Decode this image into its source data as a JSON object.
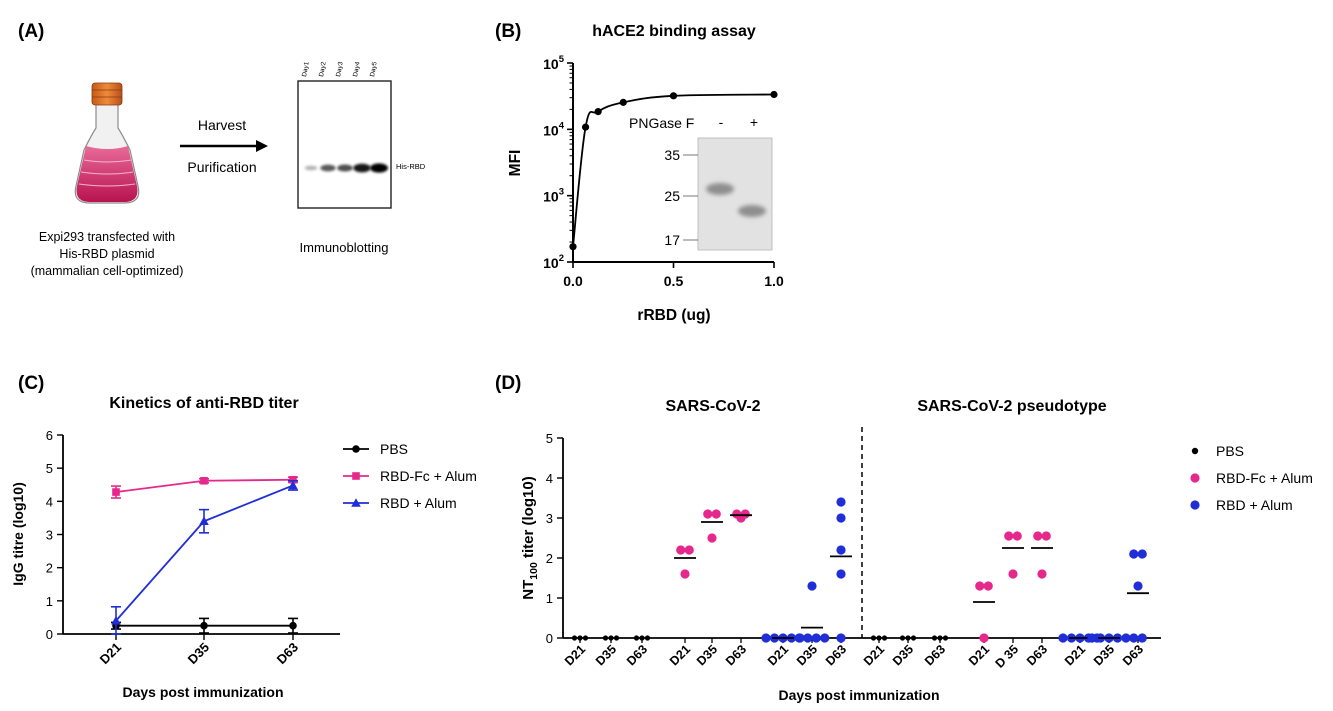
{
  "panels": {
    "a": {
      "label": "(A)",
      "flask_caption": [
        "Expi293 transfected with",
        "His-RBD plasmid",
        "(mammalian cell-optimized)"
      ],
      "arrow_labels": [
        "Harvest",
        "Purification"
      ],
      "lanes": [
        "Day1",
        "Day2",
        "Day3",
        "Day4",
        "Day5"
      ],
      "band_label": "His-RBD",
      "blot_caption": "Immunoblotting",
      "band_intensity": [
        0.1,
        0.55,
        0.6,
        0.9,
        1.0
      ]
    },
    "b": {
      "label": "(B)",
      "inset": {
        "title": "PNGase F",
        "minus": "-",
        "plus": "+",
        "markers": [
          "35",
          "25",
          "17"
        ]
      }
    },
    "c": {
      "label": "(C)"
    },
    "d": {
      "label": "(D)"
    }
  },
  "chart_data": [
    {
      "id": "B",
      "type": "line",
      "title": "hACE2 binding assay",
      "xlabel": "rRBD (ug)",
      "ylabel": "MFI",
      "yscale": "log",
      "xlim": [
        0,
        1.0
      ],
      "ylim": [
        100,
        100000
      ],
      "xticks": [
        "0.0",
        "0.5",
        "1.0"
      ],
      "yticks": [
        {
          "base": "10",
          "exp": "2"
        },
        {
          "base": "10",
          "exp": "3"
        },
        {
          "base": "10",
          "exp": "4"
        },
        {
          "base": "10",
          "exp": "5"
        }
      ],
      "x": [
        0,
        0.0625,
        0.125,
        0.25,
        0.5,
        1.0
      ],
      "y": [
        170,
        10800,
        18500,
        25500,
        32000,
        33500
      ]
    },
    {
      "id": "C",
      "type": "line",
      "title": "Kinetics of anti-RBD titer",
      "xlabel": "Days post immunization",
      "ylabel": "IgG titre (log10)",
      "categories": [
        "D21",
        "D35",
        "D63"
      ],
      "ylim": [
        0,
        6
      ],
      "yticks": [
        "0",
        "1",
        "2",
        "3",
        "4",
        "5",
        "6"
      ],
      "legend_position": "right",
      "series": [
        {
          "name": "PBS",
          "color": "#000000",
          "marker": "circle",
          "values": [
            0.25,
            0.25,
            0.25
          ],
          "err": [
            0.1,
            0.22,
            0.22
          ]
        },
        {
          "name": "RBD-Fc + Alum",
          "color": "#e6288c",
          "marker": "square",
          "values": [
            4.28,
            4.62,
            4.65
          ],
          "err": [
            0.18,
            0.06,
            0.08
          ]
        },
        {
          "name": "RBD + Alum",
          "color": "#1f2ed6",
          "marker": "triangle",
          "values": [
            0.4,
            3.4,
            4.48
          ],
          "err": [
            0.42,
            0.35,
            0.14
          ]
        }
      ]
    },
    {
      "id": "D",
      "type": "scatter",
      "ylabel_parts": {
        "pre": "NT",
        "sub": "100",
        "post": " titer (log10)"
      },
      "xlabel": "Days post immunization",
      "ylim": [
        0,
        5
      ],
      "yticks": [
        "0",
        "1",
        "2",
        "3",
        "4",
        "5"
      ],
      "legend_position": "right",
      "legend": [
        {
          "name": "PBS",
          "color": "#000000"
        },
        {
          "name": "RBD-Fc + Alum",
          "color": "#e6288c"
        },
        {
          "name": "RBD + Alum",
          "color": "#1f2ed6"
        }
      ],
      "panels": [
        {
          "title": "SARS-CoV-2",
          "groups": [
            {
              "label": "D21",
              "series": "PBS",
              "points": [
                0,
                0,
                0
              ],
              "mean": 0
            },
            {
              "label": "D35",
              "series": "PBS",
              "points": [
                0,
                0,
                0
              ],
              "mean": 0
            },
            {
              "label": "D63",
              "series": "PBS",
              "points": [
                0,
                0,
                0
              ],
              "mean": 0
            },
            {
              "label": "D21",
              "series": "RBD-Fc + Alum",
              "points": [
                2.2,
                2.2,
                1.6
              ],
              "mean": 2.0
            },
            {
              "label": "D35",
              "series": "RBD-Fc + Alum",
              "points": [
                3.1,
                3.1,
                2.5
              ],
              "mean": 2.9
            },
            {
              "label": "D63",
              "series": "RBD-Fc + Alum",
              "points": [
                3.0,
                3.1,
                3.1
              ],
              "mean": 3.07
            },
            {
              "label": "D21",
              "series": "RBD + Alum",
              "points": [
                0,
                0,
                0,
                0,
                0
              ],
              "mean": 0
            },
            {
              "label": "D35",
              "series": "RBD + Alum",
              "points": [
                1.3,
                0,
                0,
                0,
                0
              ],
              "mean": 0.26
            },
            {
              "label": "D63",
              "series": "RBD + Alum",
              "points": [
                3.4,
                3.0,
                2.2,
                1.6,
                0
              ],
              "mean": 2.04
            }
          ]
        },
        {
          "title": "SARS-CoV-2 pseudotype",
          "groups": [
            {
              "label": "D21",
              "series": "PBS",
              "points": [
                0,
                0,
                0
              ],
              "mean": 0
            },
            {
              "label": "D35",
              "series": "PBS",
              "points": [
                0,
                0,
                0
              ],
              "mean": 0
            },
            {
              "label": "D63",
              "series": "PBS",
              "points": [
                0,
                0,
                0
              ],
              "mean": 0
            },
            {
              "label": "D21",
              "series": "RBD-Fc + Alum",
              "points": [
                1.3,
                1.3,
                0
              ],
              "mean": 0.9
            },
            {
              "label": "D 35",
              "series": "RBD-Fc + Alum",
              "points": [
                2.55,
                2.55,
                1.6
              ],
              "mean": 2.25
            },
            {
              "label": "D63",
              "series": "RBD-Fc + Alum",
              "points": [
                2.55,
                2.55,
                1.6
              ],
              "mean": 2.25
            },
            {
              "label": "D21",
              "series": "RBD + Alum",
              "points": [
                0,
                0,
                0,
                0,
                0
              ],
              "mean": 0
            },
            {
              "label": "D35",
              "series": "RBD + Alum",
              "points": [
                0,
                0,
                0,
                0,
                0
              ],
              "mean": 0
            },
            {
              "label": "D63",
              "series": "RBD + Alum",
              "points": [
                2.1,
                2.1,
                1.3,
                0,
                0
              ],
              "mean": 1.12
            }
          ]
        }
      ]
    }
  ]
}
